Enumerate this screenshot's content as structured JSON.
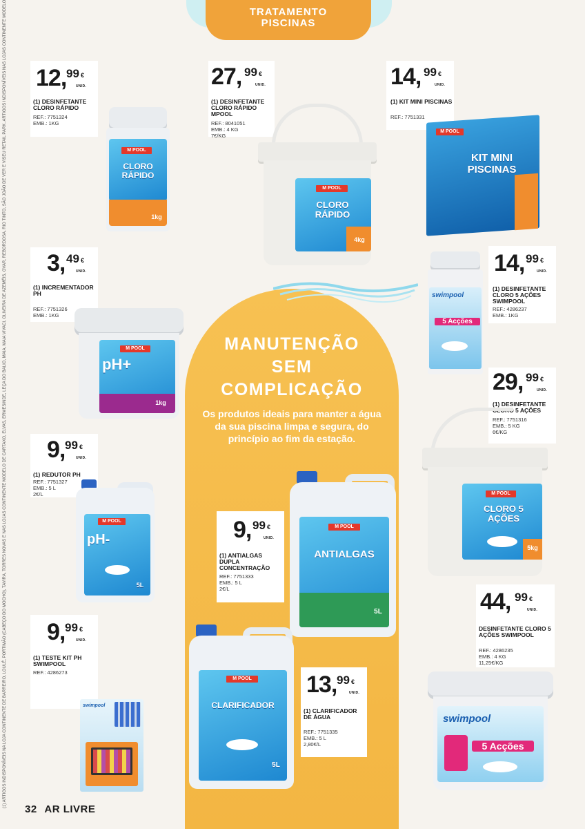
{
  "header": {
    "line1": "TRATAMENTO",
    "line2": "PISCINAS"
  },
  "promo": {
    "headline1": "MANUTENÇÃO",
    "headline2": "SEM",
    "headline3": "COMPLICAÇÃO",
    "subline": "Os produtos ideais para manter a água da sua piscina limpa e segura, do princípio ao fim da estação."
  },
  "products": [
    {
      "int": "12",
      "dec": "99",
      "cur": "€",
      "unit": "UNID.",
      "name": "(1) DESINFETANTE CLORO RÁPIDO",
      "info": [
        "REF.: 7751324",
        "EMB.: 1KG"
      ],
      "art": "CLORO RÁPIDO",
      "art_qty": "1kg"
    },
    {
      "int": "27",
      "dec": "99",
      "cur": "€",
      "unit": "UNID.",
      "name": "(1) DESINFETANTE CLORO RÁPIDO MPOOL",
      "info": [
        "REF.: 8041051",
        "EMB.: 4 KG",
        "7€/KG"
      ],
      "art": "CLORO RÁPIDO",
      "art_qty": "4kg"
    },
    {
      "int": "14",
      "dec": "99",
      "cur": "€",
      "unit": "UNID.",
      "name": "(1) KIT MINI PISCINAS",
      "info": [
        "REF.: 7751331"
      ],
      "art": "KIT MINI PISCINAS"
    },
    {
      "int": "3",
      "dec": "49",
      "cur": "€",
      "unit": "UNID.",
      "name": "(1) INCREMENTADOR PH",
      "info": [
        "REF.: 7751326",
        "EMB.: 1KG"
      ],
      "art": "pH+",
      "art_qty": "1kg"
    },
    {
      "int": "14",
      "dec": "99",
      "cur": "€",
      "unit": "UNID.",
      "name": "(1) DESINFETANTE CLORO 5 AÇÕES SWIMPOOL",
      "info": [
        "REF.: 4286237",
        "EMB.: 1KG"
      ],
      "art": "5 Acções"
    },
    {
      "int": "29",
      "dec": "99",
      "cur": "€",
      "unit": "UNID.",
      "name": "(1) DESINFETANTE CLORO 5 AÇÕES",
      "info": [
        "REF.: 7751316",
        "EMB.: 5 KG",
        "6€/KG"
      ],
      "art": "CLORO 5 AÇÕES",
      "art_qty": "5kg"
    },
    {
      "int": "9",
      "dec": "99",
      "cur": "€",
      "unit": "UNID.",
      "name": "(1) REDUTOR PH",
      "info": [
        "REF.: 7751327",
        "EMB.: 5 L",
        "2€/L"
      ],
      "art": "pH-",
      "art_qty": "5L"
    },
    {
      "int": "9",
      "dec": "99",
      "cur": "€",
      "unit": "UNID.",
      "name": "(1) ANTIALGAS DUPLA CONCENTRAÇÃO",
      "info": [
        "REF.: 7751333",
        "EMB.: 5 L",
        "2€/L"
      ],
      "art": "ANTIALGAS",
      "art_qty": "5L"
    },
    {
      "int": "9",
      "dec": "99",
      "cur": "€",
      "unit": "UNID.",
      "name": "(1) TESTE KIT PH SWIMPOOL",
      "info": [
        "REF.: 4286273"
      ]
    },
    {
      "int": "44",
      "dec": "99",
      "cur": "€",
      "unit": "UNID.",
      "name": "DESINFETANTE CLORO 5 AÇÕES SWIMPOOL",
      "info": [
        "REF.: 4286235",
        "EMB.: 4 KG",
        "11,25€/KG"
      ],
      "art": "5 Acções"
    },
    {
      "int": "13",
      "dec": "99",
      "cur": "€",
      "unit": "UNID.",
      "name": "(1) CLARIFICADOR DE ÁGUA",
      "info": [
        "REF.: 7751335",
        "EMB.: 5 L",
        "2,80€/L"
      ],
      "art": "CLARIFICADOR",
      "art_qty": "5L"
    }
  ],
  "brands": {
    "mpool": "M POOL",
    "swimpool": "swimpool"
  },
  "footer": {
    "page": "32",
    "section": "AR LIVRE"
  },
  "disclaimer": "(1) ARTIGOS INDISPONÍVEIS NA LOJA CONTINENTE DE BARREIRO, LOULÉ, PORTIMÃO (CABEÇO DO MOCHO), TAVIRA, TORRES NOVAS E NAS LOJAS CONTINENTE MODELO DE CARTAXO, ELVAS, ERMESINDE, LEÇA DO BALIO, MAIA, MAIA VIVACI, OLIVEIRA DE AZEMÉIS, OVAR, REBORDOSA, RIO TINTO, SÃO JOÃO DE VER E VISEU RETAIL PARK. ARTIGOS INDISPONÍVEIS NAS LOJAS CONTINENTE MODELO CAMACHA, CÂMARA DE LOBOS, CANIÇO, ESTREITO, MACHICO CENTRO, RIBEIRA BRAVA CENTRO, SANTANA, SANTO ANTÓNIO E SEMINÁRIO."
}
